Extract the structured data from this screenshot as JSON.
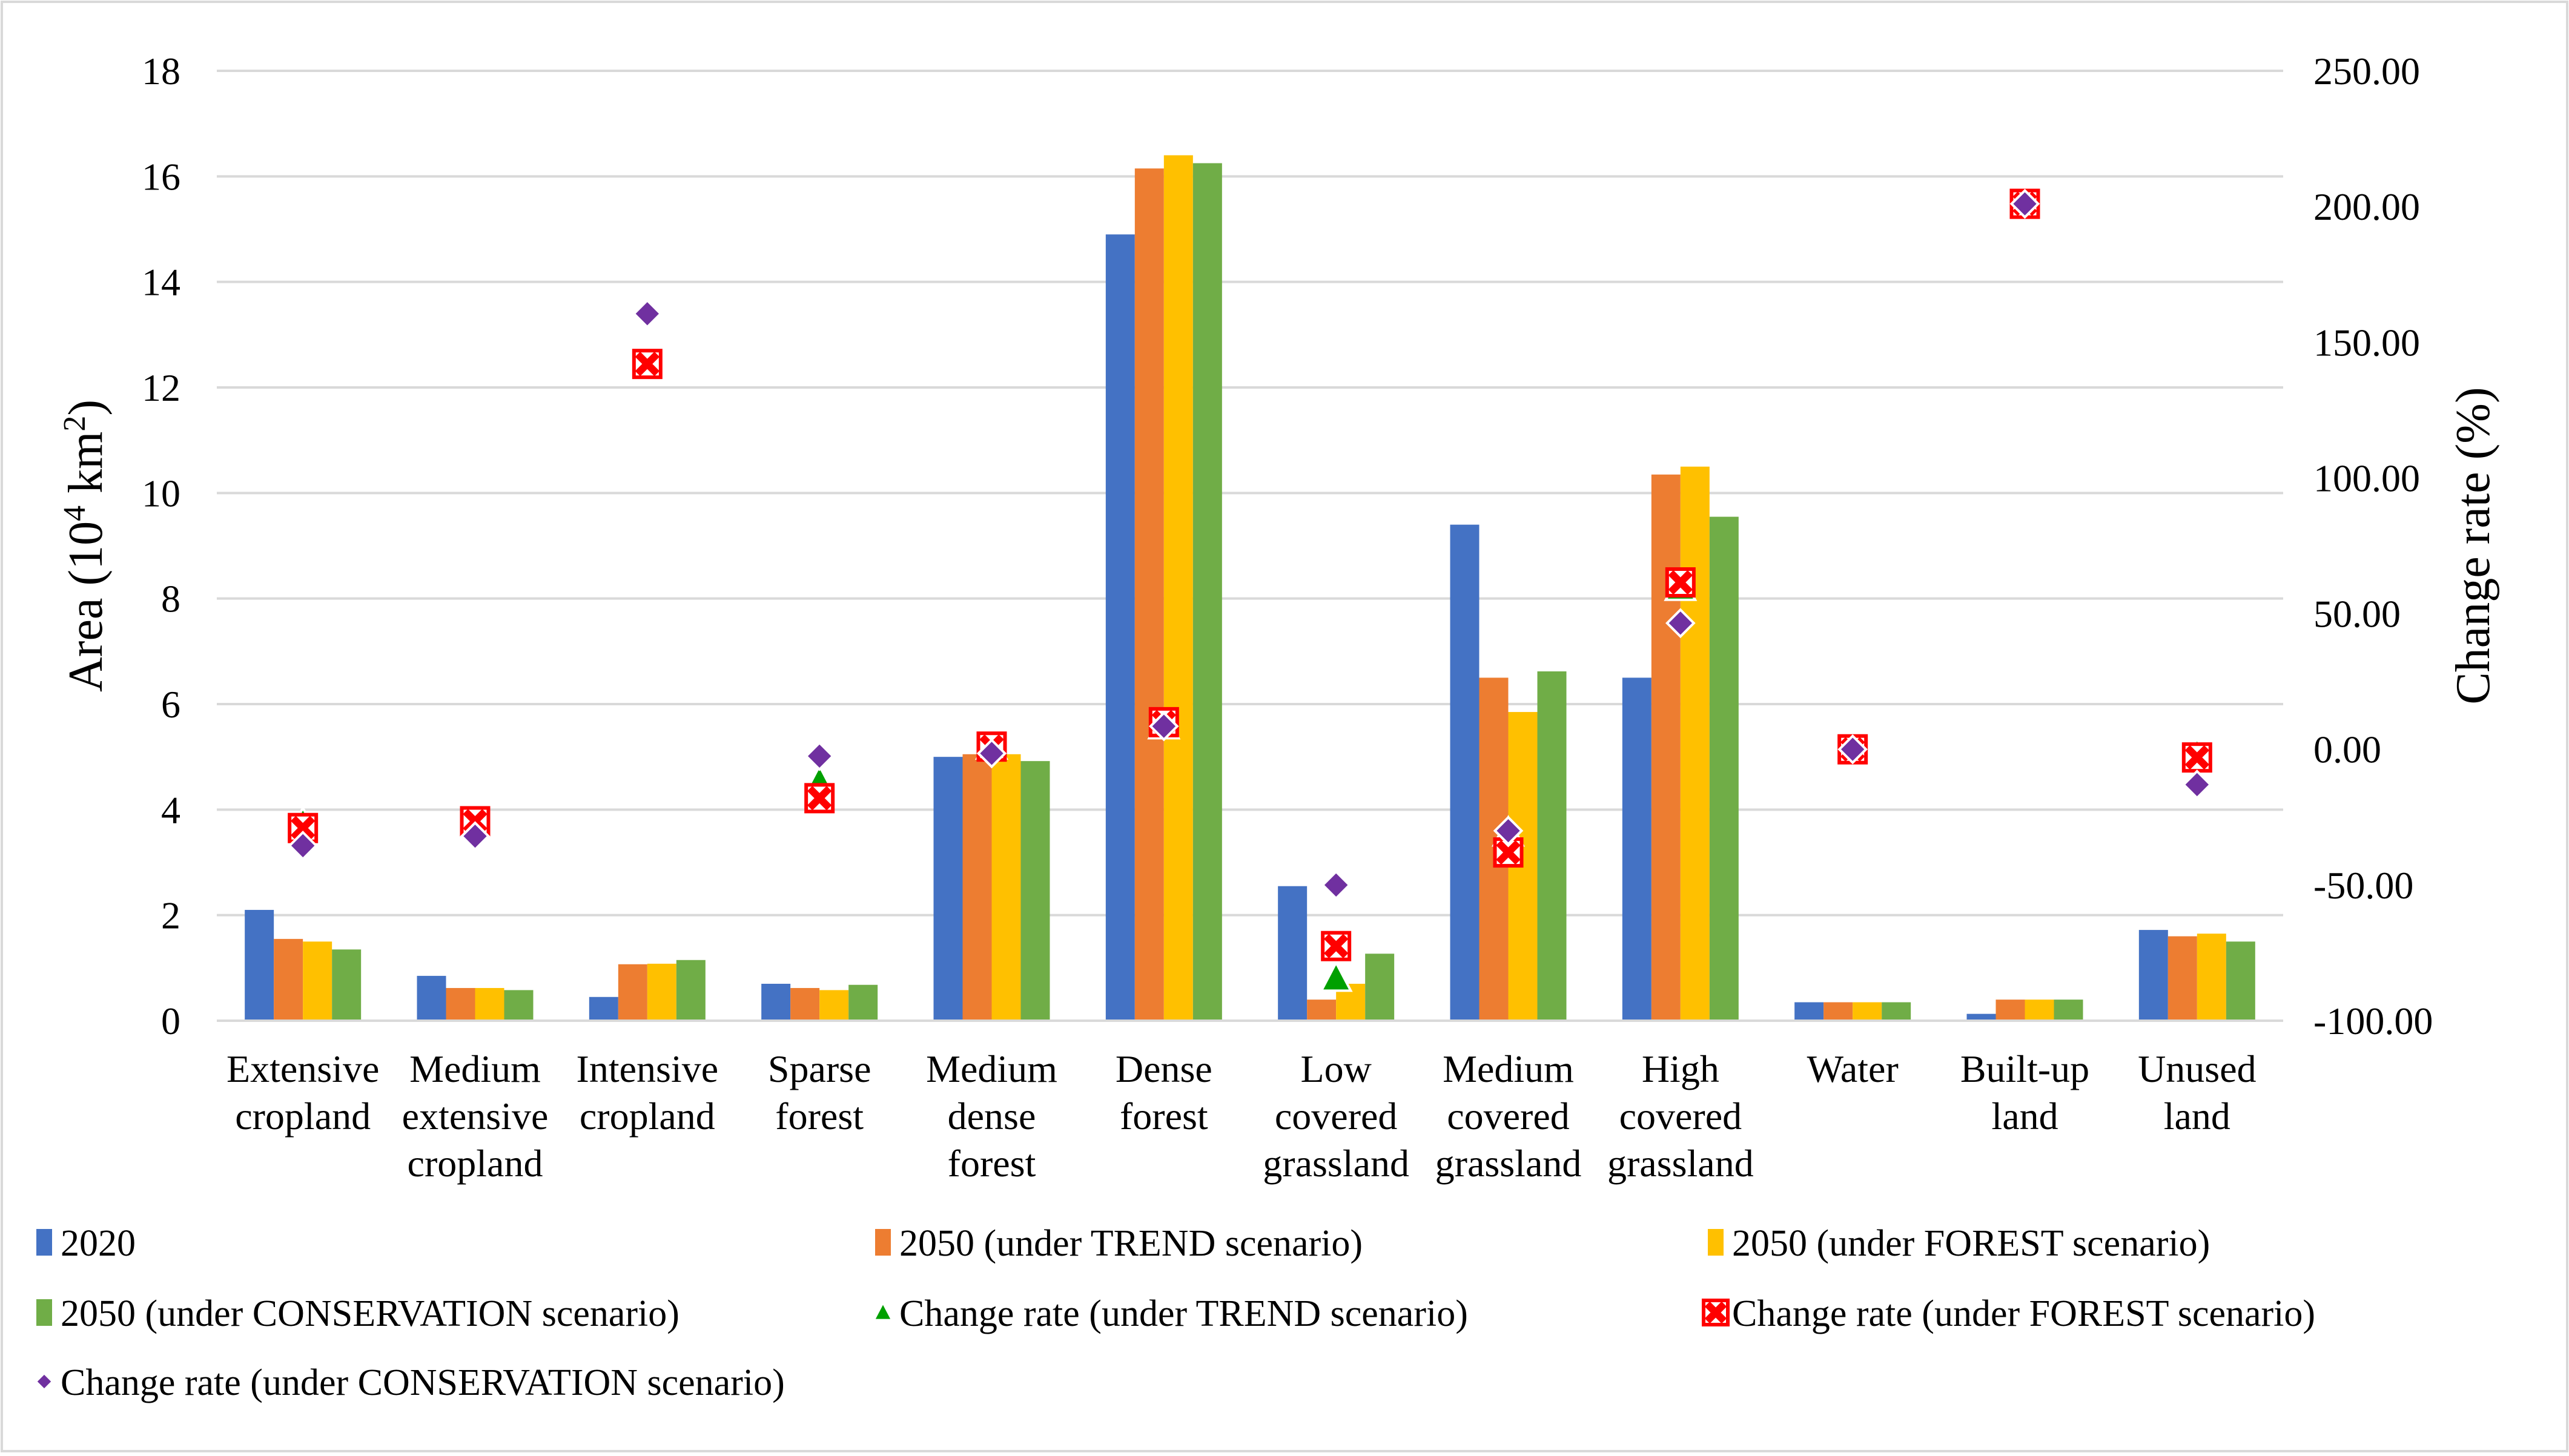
{
  "chart_data": {
    "type": "bar",
    "title": "",
    "categories": [
      [
        "Extensive",
        "cropland"
      ],
      [
        "Medium",
        "extensive",
        "cropland"
      ],
      [
        "Intensive",
        "cropland"
      ],
      [
        "Sparse",
        "forest"
      ],
      [
        "Medium",
        "dense",
        "forest"
      ],
      [
        "Dense",
        "forest"
      ],
      [
        "Low",
        "covered",
        "grassland"
      ],
      [
        "Medium",
        "covered",
        "grassland"
      ],
      [
        "High",
        "covered",
        "grassland"
      ],
      [
        "Water"
      ],
      [
        "Built-up",
        "land"
      ],
      [
        "Unused",
        "land"
      ]
    ],
    "ylabel_left": {
      "pre": "Area (10",
      "sup": "4",
      "mid": " km",
      "sup2": "2",
      "post": ")"
    },
    "ylabel_right": "Change rate (%)",
    "ylim_left": [
      0,
      18
    ],
    "yticks_left": [
      "0",
      "2",
      "4",
      "6",
      "8",
      "10",
      "12",
      "14",
      "16",
      "18"
    ],
    "ylim_right": [
      -100,
      250
    ],
    "yticks_right": [
      "-100.00",
      "-50.00",
      "0.00",
      "50.00",
      "100.00",
      "150.00",
      "200.00",
      "250.00"
    ],
    "bar_series": [
      {
        "name": "2020",
        "color": "#4472C4",
        "values": [
          2.1,
          0.85,
          0.45,
          0.7,
          5.0,
          14.9,
          2.55,
          9.4,
          6.5,
          0.35,
          0.13,
          1.72
        ]
      },
      {
        "name": "2050 (under TREND scenario)",
        "color": "#ED7D31",
        "values": [
          1.55,
          0.62,
          1.07,
          0.62,
          5.05,
          16.15,
          0.4,
          6.5,
          10.35,
          0.35,
          0.4,
          1.6
        ]
      },
      {
        "name": "2050 (under FOREST scenario)",
        "color": "#FFC000",
        "values": [
          1.5,
          0.62,
          1.08,
          0.58,
          5.05,
          16.4,
          0.7,
          5.85,
          10.5,
          0.35,
          0.4,
          1.65
        ]
      },
      {
        "name": "2050 (under CONSERVATION scenario)",
        "color": "#70AD47",
        "values": [
          1.35,
          0.58,
          1.15,
          0.68,
          4.92,
          16.25,
          1.27,
          6.62,
          9.55,
          0.35,
          0.4,
          1.5
        ]
      }
    ],
    "marker_series": [
      {
        "name": "Change rate (under TREND scenario)",
        "marker": "triangle",
        "color": "#00A000",
        "values": [
          -27.5,
          -26.5,
          142.0,
          -12.0,
          1.0,
          8.5,
          -84.5,
          -31.0,
          59.5,
          0.0,
          201.0,
          -2.0
        ]
      },
      {
        "name": "Change rate (under FOREST scenario)",
        "marker": "xsquare",
        "color": "#FF0000",
        "values": [
          -29.0,
          -26.5,
          142.0,
          -18.0,
          1.0,
          10.0,
          -72.5,
          -38.0,
          61.5,
          0.0,
          201.0,
          -3.0
        ]
      },
      {
        "name": "Change rate (under CONSERVATION scenario)",
        "marker": "diamond",
        "color": "#7030A0",
        "values": [
          -35.5,
          -32.0,
          160.5,
          -2.5,
          -1.5,
          8.5,
          -50.0,
          -30.0,
          46.5,
          0.0,
          201.0,
          -13.0
        ]
      }
    ],
    "legend_position": "bottom"
  }
}
